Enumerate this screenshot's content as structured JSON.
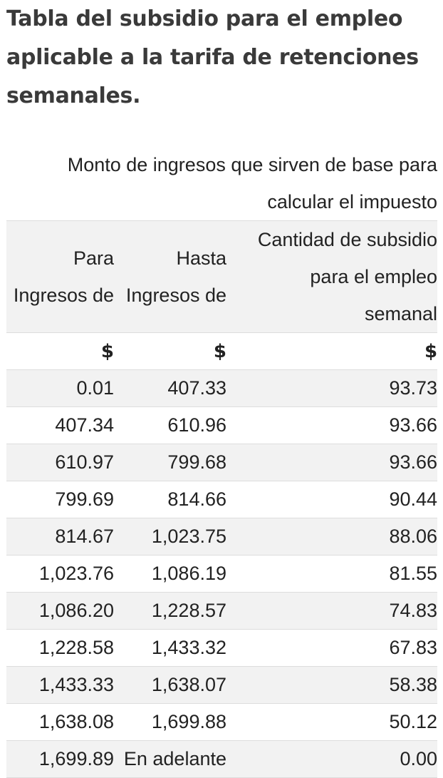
{
  "title": "Tabla del subsidio para el empleo aplicable a la tarifa de retenciones semanales.",
  "table": {
    "group_header": "Monto de ingresos que sirven de base para calcular el impuesto",
    "columns": {
      "para": [
        "Para",
        "Ingresos de"
      ],
      "hasta": [
        "Hasta",
        "Ingresos de"
      ],
      "subsidio": [
        "Cantidad de subsidio",
        "para el empleo",
        "semanal"
      ]
    },
    "currency": [
      "$",
      "$",
      "$"
    ],
    "rows": [
      [
        "0.01",
        "407.33",
        "93.73"
      ],
      [
        "407.34",
        "610.96",
        "93.66"
      ],
      [
        "610.97",
        "799.68",
        "93.66"
      ],
      [
        "799.69",
        "814.66",
        "90.44"
      ],
      [
        "814.67",
        "1,023.75",
        "88.06"
      ],
      [
        "1,023.76",
        "1,086.19",
        "81.55"
      ],
      [
        "1,086.20",
        "1,228.57",
        "74.83"
      ],
      [
        "1,228.58",
        "1,433.32",
        "67.83"
      ],
      [
        "1,433.33",
        "1,638.07",
        "58.38"
      ],
      [
        "1,638.08",
        "1,699.88",
        "50.12"
      ],
      [
        "1,699.89",
        "En adelante",
        "0.00"
      ]
    ]
  }
}
